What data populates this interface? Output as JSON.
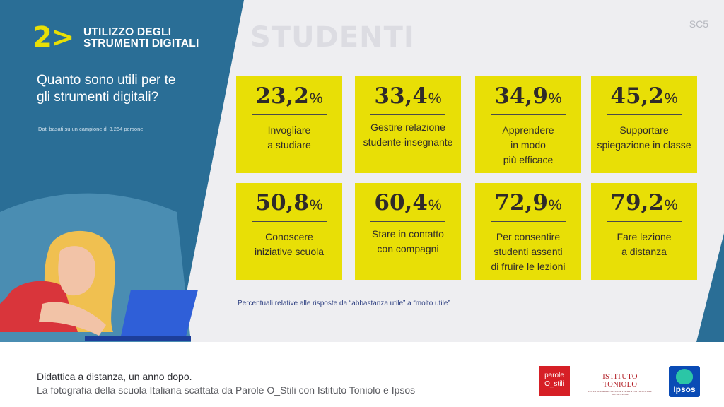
{
  "header": {
    "section_number": "2>",
    "section_title_line1": "UTILIZZO DEGLI",
    "section_title_line2": "STRUMENTI DIGITALI",
    "audience_label": "STUDENTI",
    "slide_code": "SC5"
  },
  "question": {
    "line1": "Quanto sono utili per te",
    "line2": "gli strumenti digitali?",
    "sample_note": "Dati basati su un campione di 3,264 persone"
  },
  "stats": [
    {
      "value": "23,2",
      "unit": "%",
      "label_lines": [
        "Invogliare",
        "a studiare"
      ]
    },
    {
      "value": "33,4",
      "unit": "%",
      "label_lines": [
        "Gestire relazione",
        "studente-insegnante"
      ]
    },
    {
      "value": "34,9",
      "unit": "%",
      "label_lines": [
        "Apprendere",
        "in modo",
        "più efficace"
      ]
    },
    {
      "value": "45,2",
      "unit": "%",
      "label_lines": [
        "Supportare",
        "spiegazione in classe"
      ]
    },
    {
      "value": "50,8",
      "unit": "%",
      "label_lines": [
        "Conoscere",
        "iniziative scuola"
      ]
    },
    {
      "value": "60,4",
      "unit": "%",
      "label_lines": [
        "Stare in contatto",
        "con compagni"
      ]
    },
    {
      "value": "72,9",
      "unit": "%",
      "label_lines": [
        "Per consentire",
        "studenti assenti",
        "di fruire le lezioni"
      ]
    },
    {
      "value": "79,2",
      "unit": "%",
      "label_lines": [
        "Fare lezione",
        "a distanza"
      ]
    }
  ],
  "footnote": "Percentuali relative alle risposte da “abbastanza utile” a “molto utile”",
  "footer": {
    "line1": "Didattica a distanza, un anno dopo.",
    "line2": "La fotografia della scuola Italiana scattata da Parole O_Stili con Istituto Toniolo e Ipsos"
  },
  "logos": {
    "parole_line1": "parole",
    "parole_line2": "O_stili",
    "toniolo_line1": "ISTITUTO TONIOLO",
    "toniolo_line2": "ENTE FONDATORE DELL'UNIVERSITÀ CATTOLICA DEL SACRO CUORE",
    "ipsos": "Ipsos"
  },
  "colors": {
    "dark_blue": "#2a6e96",
    "mid_blue": "#4a8db2",
    "card_yellow": "#e8df06",
    "panel_gray": "#eeeef1",
    "accent_yellow": "#e8df06"
  }
}
